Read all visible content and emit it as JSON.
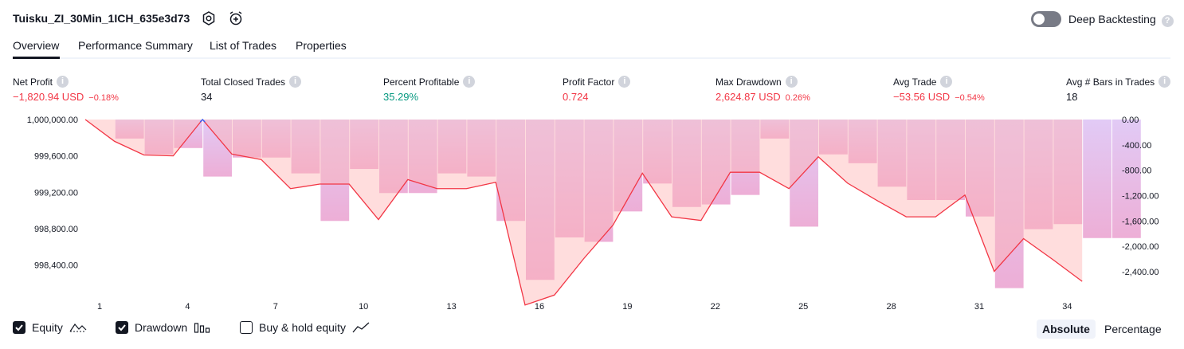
{
  "header": {
    "title": "Tuisku_ZI_30Min_1ICH_635e3d73",
    "deep_backtesting_label": "Deep Backtesting",
    "deep_backtesting_on": false,
    "settings_icon": "gear-icon",
    "alert_icon": "alarm-add-icon",
    "help_icon": "question-icon"
  },
  "tabs": [
    {
      "label": "Overview",
      "active": true
    },
    {
      "label": "Performance Summary",
      "active": false
    },
    {
      "label": "List of Trades",
      "active": false
    },
    {
      "label": "Properties",
      "active": false
    }
  ],
  "metrics": [
    {
      "label": "Net Profit",
      "value": "−1,820.94 USD",
      "sub": "−0.18%",
      "color": "#f23645"
    },
    {
      "label": "Total Closed Trades",
      "value": "34",
      "sub": "",
      "color": "#131722"
    },
    {
      "label": "Percent Profitable",
      "value": "35.29%",
      "sub": "",
      "color": "#089981"
    },
    {
      "label": "Profit Factor",
      "value": "0.724",
      "sub": "",
      "color": "#f23645"
    },
    {
      "label": "Max Drawdown",
      "value": "2,624.87 USD",
      "sub": "0.26%",
      "color": "#f23645"
    },
    {
      "label": "Avg Trade",
      "value": "−53.56 USD",
      "sub": "−0.54%",
      "color": "#f23645"
    },
    {
      "label": "Avg # Bars in Trades",
      "value": "18",
      "sub": "",
      "color": "#131722"
    }
  ],
  "chart_data": {
    "type": "line",
    "x": [
      1,
      2,
      3,
      4,
      5,
      6,
      7,
      8,
      9,
      10,
      11,
      12,
      13,
      14,
      15,
      16,
      17,
      18,
      19,
      20,
      21,
      22,
      23,
      24,
      25,
      26,
      27,
      28,
      29,
      30,
      31,
      32,
      33,
      34,
      35,
      36
    ],
    "x_ticks": [
      "1",
      "4",
      "7",
      "10",
      "13",
      "16",
      "19",
      "22",
      "25",
      "28",
      "31",
      "34"
    ],
    "series": [
      {
        "name": "Equity",
        "kind": "line",
        "axis": "left",
        "values": [
          1000000,
          999760,
          999610,
          999600,
          1000000,
          999620,
          999560,
          999240,
          999290,
          999290,
          998900,
          999340,
          999240,
          999240,
          999310,
          997960,
          998070,
          998470,
          998840,
          999410,
          998930,
          998890,
          999420,
          999420,
          999240,
          999590,
          999300,
          999110,
          998930,
          998930,
          999170,
          998330,
          998690,
          998460,
          998220,
          null
        ]
      },
      {
        "name": "Drawdown",
        "kind": "bar",
        "axis": "right",
        "values": [
          0,
          -300,
          -550,
          -450,
          -900,
          -600,
          -600,
          -850,
          -1600,
          -780,
          -1160,
          -1160,
          -850,
          -900,
          -1600,
          -2530,
          -1860,
          -1930,
          -1450,
          -1010,
          -1380,
          -1340,
          -1190,
          -300,
          -1690,
          -550,
          -690,
          -1060,
          -1270,
          -1270,
          -1530,
          -2660,
          -1730,
          -1650,
          -1870,
          -1870
        ]
      }
    ],
    "left_axis": {
      "ticks": [
        "1,000,000.00",
        "999,600.00",
        "999,200.00",
        "998,800.00",
        "998,400.00"
      ],
      "min": 998160,
      "max": 1000000
    },
    "right_axis": {
      "ticks": [
        "0.00",
        "-400.00",
        "-800.00",
        "-1,200.00",
        "-1,600.00",
        "-2,000.00",
        "-2,400.00"
      ],
      "min": -2640,
      "max": 0
    },
    "colors": {
      "equity_line": "#f23645",
      "equity_peak": "#2962ff",
      "drawdown_bar": "#d8b4fe",
      "equity_fill": "#ffb3b3"
    },
    "grid": false
  },
  "legend": [
    {
      "label": "Equity",
      "checked": true,
      "icon": "equity-line-icon"
    },
    {
      "label": "Drawdown",
      "checked": true,
      "icon": "drawdown-bars-icon"
    },
    {
      "label": "Buy & hold equity",
      "checked": false,
      "icon": "buy-hold-line-icon"
    }
  ],
  "modes": [
    {
      "label": "Absolute",
      "active": true
    },
    {
      "label": "Percentage",
      "active": false
    }
  ]
}
